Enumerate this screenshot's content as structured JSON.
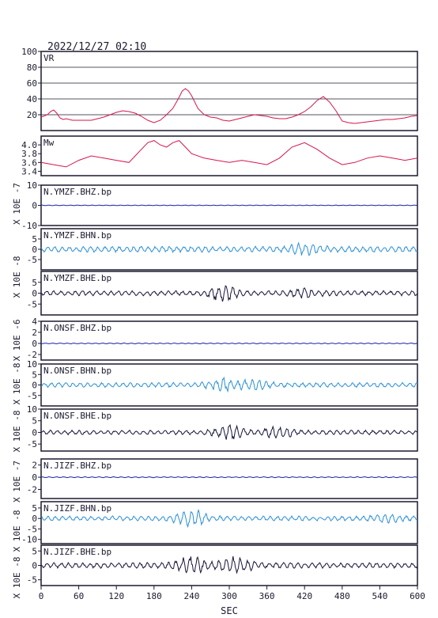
{
  "header": {
    "timestamp": "2022/12/27 02:10"
  },
  "colors": {
    "frame": "#1a1a2e",
    "vr_mw": "#d6154f",
    "bhz": "#1a22a8",
    "bhn": "#2a8fd8",
    "bhe": "#14143a"
  },
  "chart_data": {
    "type": "line",
    "xlabel": "SEC",
    "xlim": [
      0,
      600
    ],
    "xticks": [
      0,
      60,
      120,
      180,
      240,
      300,
      360,
      420,
      480,
      540,
      600
    ],
    "xtick_labels": [
      "0",
      "60",
      "120",
      "180",
      "240",
      "300",
      "360",
      "420",
      "480",
      "540",
      "600"
    ],
    "grid": "horizontal lines in VR panel only",
    "panels": [
      {
        "label": "VR",
        "ylim": [
          0,
          100
        ],
        "yticks": [
          20,
          40,
          60,
          80,
          100
        ],
        "ytick_labels": [
          "20",
          "40",
          "60",
          "80",
          "100"
        ],
        "color": "vr_mw",
        "x": [
          0,
          10,
          15,
          20,
          25,
          30,
          35,
          40,
          50,
          60,
          70,
          80,
          90,
          100,
          110,
          120,
          130,
          140,
          150,
          160,
          170,
          180,
          190,
          200,
          205,
          210,
          215,
          220,
          225,
          230,
          235,
          240,
          250,
          260,
          270,
          280,
          290,
          300,
          310,
          320,
          330,
          340,
          350,
          360,
          370,
          380,
          390,
          400,
          410,
          420,
          430,
          440,
          450,
          460,
          470,
          480,
          490,
          500,
          510,
          520,
          530,
          540,
          550,
          560,
          570,
          580,
          590,
          600
        ],
        "y": [
          17,
          20,
          24,
          26,
          22,
          16,
          14,
          15,
          13,
          13,
          13,
          13,
          15,
          17,
          20,
          23,
          25,
          24,
          22,
          18,
          13,
          10,
          13,
          20,
          24,
          28,
          35,
          42,
          50,
          53,
          50,
          44,
          28,
          20,
          17,
          16,
          13,
          12,
          14,
          16,
          18,
          20,
          19,
          18,
          16,
          15,
          15,
          17,
          20,
          24,
          30,
          38,
          43,
          36,
          25,
          12,
          10,
          9,
          10,
          11,
          12,
          13,
          14,
          14,
          15,
          16,
          18,
          19
        ]
      },
      {
        "label": "Mw",
        "ylim": [
          3.3,
          4.2
        ],
        "yticks": [
          3.4,
          3.6,
          3.8,
          4.0
        ],
        "ytick_labels": [
          "3.4",
          "3.6",
          "3.8",
          "4.0"
        ],
        "color": "vr_mw",
        "x": [
          0,
          20,
          40,
          60,
          80,
          100,
          120,
          140,
          150,
          160,
          170,
          180,
          190,
          200,
          210,
          220,
          230,
          240,
          260,
          280,
          300,
          320,
          340,
          360,
          380,
          400,
          420,
          440,
          460,
          480,
          500,
          520,
          540,
          560,
          580,
          600
        ],
        "y": [
          3.6,
          3.55,
          3.5,
          3.65,
          3.75,
          3.7,
          3.65,
          3.6,
          3.75,
          3.9,
          4.05,
          4.1,
          4.0,
          3.95,
          4.05,
          4.1,
          3.95,
          3.8,
          3.7,
          3.65,
          3.6,
          3.65,
          3.6,
          3.55,
          3.7,
          3.95,
          4.05,
          3.9,
          3.7,
          3.55,
          3.6,
          3.7,
          3.75,
          3.7,
          3.65,
          3.7
        ]
      },
      {
        "label": "N.YMZF.BHZ.bp",
        "unit": "X 10E -7",
        "ylim": [
          -10,
          10
        ],
        "yticks": [
          10,
          0,
          -10
        ],
        "ytick_labels": [
          "10",
          "0",
          "-10"
        ],
        "color": "bhz",
        "amp": 0.15,
        "burst": [],
        "seed": 1
      },
      {
        "label": "N.YMZF.BHN.bp",
        "unit": "X 10E -8",
        "ylim": [
          -10,
          10
        ],
        "yticks": [
          5,
          0,
          -5
        ],
        "ytick_labels": [
          "5",
          "0",
          "-5"
        ],
        "color": "bhn",
        "amp": 1.5,
        "burst": [
          [
            420,
            2.0
          ]
        ],
        "seed": 2
      },
      {
        "label": "N.YMZF.BHE.bp",
        "unit": "X 10E -8",
        "ylim": [
          -10,
          10
        ],
        "yticks": [
          5,
          0,
          -5
        ],
        "ytick_labels": [
          "5",
          "0",
          "-5"
        ],
        "color": "bhe",
        "amp": 1.2,
        "burst": [
          [
            290,
            3.0
          ],
          [
            420,
            1.5
          ]
        ],
        "seed": 3
      },
      {
        "label": "N.ONSF.BHZ.bp",
        "unit": "X 10E -6",
        "ylim": [
          -3,
          4
        ],
        "yticks": [
          4,
          2,
          0,
          -2
        ],
        "ytick_labels": [
          "4",
          "2",
          "0",
          "-2"
        ],
        "color": "bhz",
        "amp": 0.08,
        "burst": [],
        "seed": 4
      },
      {
        "label": "N.ONSF.BHN.bp",
        "unit": "X 10E -8",
        "ylim": [
          -10,
          10
        ],
        "yticks": [
          10,
          5,
          0,
          -5
        ],
        "ytick_labels": [
          "10",
          "5",
          "0",
          "-5"
        ],
        "color": "bhn",
        "amp": 1.2,
        "burst": [
          [
            290,
            2.5
          ],
          [
            340,
            1.5
          ]
        ],
        "seed": 5
      },
      {
        "label": "N.ONSF.BHE.bp",
        "unit": "X 10E -8",
        "ylim": [
          -8,
          10
        ],
        "yticks": [
          10,
          5,
          0,
          -5
        ],
        "ytick_labels": [
          "10",
          "5",
          "0",
          "-5"
        ],
        "color": "bhe",
        "amp": 1.0,
        "burst": [
          [
            300,
            2.5
          ],
          [
            380,
            2.0
          ]
        ],
        "seed": 6
      },
      {
        "label": "N.JIZF.BHZ.bp",
        "unit": "X 10E -7",
        "ylim": [
          -3.5,
          3
        ],
        "yticks": [
          2,
          0,
          -2
        ],
        "ytick_labels": [
          "2",
          "0",
          "-2"
        ],
        "color": "bhz",
        "amp": 0.08,
        "burst": [],
        "seed": 7
      },
      {
        "label": "N.JIZF.BHN.bp",
        "unit": "X 10E -8",
        "ylim": [
          -12,
          8
        ],
        "yticks": [
          5,
          0,
          -5,
          -10
        ],
        "ytick_labels": [
          "5",
          "0",
          "-5",
          "-10"
        ],
        "color": "bhn",
        "amp": 1.2,
        "burst": [
          [
            240,
            3.5
          ],
          [
            550,
            1.5
          ]
        ],
        "seed": 8
      },
      {
        "label": "N.JIZF.BHE.bp",
        "unit": "X 10E -8",
        "ylim": [
          -7,
          7
        ],
        "yticks": [
          5,
          0,
          -5
        ],
        "ytick_labels": [
          "5",
          "0",
          "-5"
        ],
        "color": "bhe",
        "amp": 1.0,
        "burst": [
          [
            240,
            2.5
          ],
          [
            310,
            2.5
          ]
        ],
        "seed": 9
      }
    ]
  }
}
